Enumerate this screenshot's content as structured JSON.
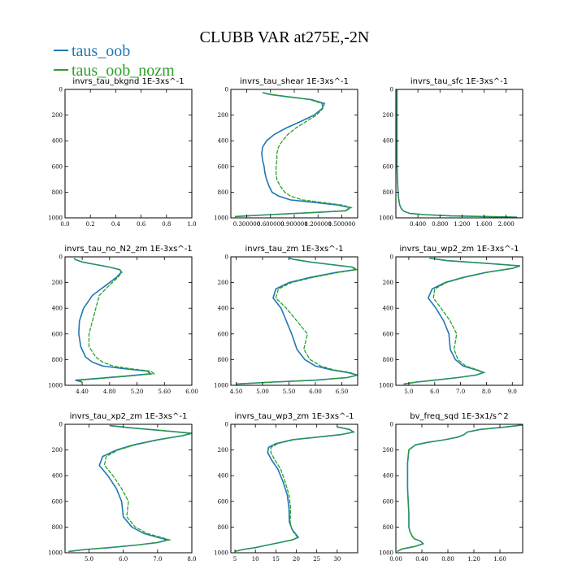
{
  "figure": {
    "title": "CLUBB VAR at275E,-2N"
  },
  "legend": [
    {
      "name": "taus_oob",
      "color": "#1f77b4"
    },
    {
      "name": "taus_oob_nozm",
      "color": "#2ca02c"
    }
  ],
  "chart_data": [
    {
      "type": "line",
      "title": "invrs_tau_bkgnd   1E-3xs^-1",
      "xlim": [
        0,
        1
      ],
      "ylim": [
        1000,
        0
      ],
      "xticks": [
        "0.0",
        "0.2",
        "0.4",
        "0.6",
        "0.8",
        "1.0"
      ],
      "xtick_values": [
        0,
        0.2,
        0.4,
        0.6,
        0.8,
        1.0
      ],
      "yticks": [
        "0",
        "200",
        "400",
        "600",
        "800",
        "1000"
      ],
      "series": []
    },
    {
      "type": "line",
      "title": "invrs_tau_shear   1E-3xs^-1",
      "xlim": [
        0.1,
        1.7
      ],
      "ylim": [
        1000,
        0
      ],
      "xticks": [
        "0.300000",
        "0.600000",
        "0.900000",
        "1.200000",
        "1.500000"
      ],
      "xtick_values": [
        0.3,
        0.6,
        0.9,
        1.2,
        1.5
      ],
      "yticks": [
        "0",
        "200",
        "400",
        "600",
        "800",
        "1000"
      ],
      "series": [
        {
          "name": "taus_oob",
          "color": "#1f77b4",
          "y": [
            990,
            975,
            960,
            945,
            920,
            900,
            880,
            860,
            830,
            800,
            750,
            700,
            650,
            600,
            550,
            500,
            450,
            400,
            350,
            300,
            250,
            200,
            150,
            110,
            80,
            60,
            40,
            25
          ],
          "x": [
            0.15,
            0.6,
            1.1,
            1.55,
            1.6,
            1.45,
            1.15,
            0.85,
            0.7,
            0.62,
            0.58,
            0.55,
            0.53,
            0.52,
            0.5,
            0.49,
            0.5,
            0.55,
            0.65,
            0.8,
            0.98,
            1.15,
            1.25,
            1.28,
            1.12,
            0.85,
            0.6,
            0.5
          ]
        },
        {
          "name": "taus_oob_nozm",
          "color": "#2ca02c",
          "y": [
            990,
            975,
            960,
            945,
            920,
            900,
            880,
            860,
            830,
            800,
            750,
            700,
            650,
            600,
            550,
            500,
            450,
            400,
            350,
            300,
            250,
            200,
            150,
            110,
            80,
            60,
            40,
            25
          ],
          "x": [
            0.15,
            0.6,
            1.1,
            1.55,
            1.62,
            1.5,
            1.25,
            1.0,
            0.85,
            0.78,
            0.72,
            0.68,
            0.67,
            0.67,
            0.68,
            0.68,
            0.7,
            0.75,
            0.82,
            0.92,
            1.05,
            1.18,
            1.26,
            1.25,
            1.1,
            0.88,
            0.62,
            0.5
          ]
        }
      ]
    },
    {
      "type": "line",
      "title": "invrs_tau_sfc   1E-3xs^-1",
      "xlim": [
        0,
        2.3
      ],
      "ylim": [
        1000,
        0
      ],
      "xticks": [
        "0.400",
        "0.800",
        "1.200",
        "1.600",
        "2.000"
      ],
      "xtick_values": [
        0.4,
        0.8,
        1.2,
        1.6,
        2.0
      ],
      "yticks": [
        "0",
        "200",
        "400",
        "600",
        "800",
        "1000"
      ],
      "series": [
        {
          "name": "taus_oob",
          "color": "#1f77b4",
          "y": [
            0,
            200,
            400,
            600,
            700,
            800,
            850,
            900,
            930,
            950,
            965,
            975,
            985,
            995
          ],
          "x": [
            0.02,
            0.02,
            0.02,
            0.02,
            0.03,
            0.04,
            0.05,
            0.07,
            0.1,
            0.15,
            0.25,
            0.5,
            1.0,
            2.2
          ]
        },
        {
          "name": "taus_oob_nozm",
          "color": "#2ca02c",
          "y": [
            0,
            200,
            400,
            600,
            700,
            800,
            850,
            900,
            930,
            950,
            965,
            975,
            985,
            995
          ],
          "x": [
            0.02,
            0.02,
            0.02,
            0.02,
            0.03,
            0.04,
            0.05,
            0.07,
            0.1,
            0.15,
            0.25,
            0.5,
            1.0,
            2.2
          ]
        }
      ]
    },
    {
      "type": "line",
      "title": "invrs_tau_no_N2_zm   1E-3xs^-1",
      "xlim": [
        4.15,
        6.0
      ],
      "ylim": [
        1000,
        0
      ],
      "xticks": [
        "4.40",
        "4.80",
        "5.20",
        "5.60",
        "6.00"
      ],
      "xtick_values": [
        4.4,
        4.8,
        5.2,
        5.6,
        6.0
      ],
      "yticks": [
        "0",
        "200",
        "400",
        "600",
        "800",
        "1000"
      ],
      "series": [
        {
          "name": "taus_oob",
          "color": "#1f77b4",
          "y": [
            975,
            960,
            950,
            930,
            910,
            890,
            870,
            850,
            820,
            780,
            700,
            600,
            500,
            400,
            300,
            220,
            160,
            120,
            100,
            80,
            60,
            40,
            20,
            10
          ],
          "x": [
            4.4,
            4.3,
            4.55,
            5.0,
            5.4,
            5.35,
            5.0,
            4.7,
            4.55,
            4.45,
            4.38,
            4.35,
            4.36,
            4.42,
            4.55,
            4.75,
            4.9,
            4.97,
            4.95,
            4.8,
            4.6,
            4.4,
            4.3,
            4.28
          ]
        },
        {
          "name": "taus_oob_nozm",
          "color": "#2ca02c",
          "y": [
            975,
            960,
            950,
            930,
            910,
            890,
            870,
            850,
            820,
            780,
            700,
            600,
            500,
            400,
            300,
            220,
            160,
            120,
            100,
            80,
            60,
            40,
            20,
            10
          ],
          "x": [
            4.4,
            4.35,
            4.6,
            5.05,
            5.45,
            5.4,
            5.1,
            4.85,
            4.7,
            4.6,
            4.5,
            4.5,
            4.55,
            4.6,
            4.65,
            4.8,
            4.92,
            4.98,
            4.95,
            4.8,
            4.6,
            4.4,
            4.3,
            4.28
          ]
        }
      ]
    },
    {
      "type": "line",
      "title": "invrs_tau_zm   1E-3xs^-1",
      "xlim": [
        4.4,
        6.8
      ],
      "ylim": [
        1000,
        0
      ],
      "xticks": [
        "4.50",
        "5.00",
        "5.50",
        "6.00",
        "6.50"
      ],
      "xtick_values": [
        4.5,
        5.0,
        5.5,
        6.0,
        6.5
      ],
      "yticks": [
        "0",
        "200",
        "400",
        "600",
        "800",
        "1000"
      ],
      "series": [
        {
          "name": "taus_oob",
          "color": "#1f77b4",
          "y": [
            990,
            975,
            960,
            940,
            920,
            900,
            880,
            850,
            800,
            720,
            600,
            500,
            400,
            320,
            250,
            200,
            160,
            120,
            100,
            80,
            60,
            40,
            20,
            10
          ],
          "x": [
            4.5,
            5.2,
            6.0,
            6.6,
            6.8,
            6.6,
            6.3,
            6.0,
            5.8,
            5.65,
            5.55,
            5.45,
            5.35,
            5.2,
            5.25,
            5.5,
            5.9,
            6.4,
            6.75,
            6.7,
            6.3,
            5.9,
            5.6,
            5.5
          ]
        },
        {
          "name": "taus_oob_nozm",
          "color": "#2ca02c",
          "y": [
            990,
            975,
            960,
            940,
            920,
            900,
            880,
            850,
            800,
            720,
            600,
            500,
            400,
            320,
            250,
            200,
            160,
            120,
            100,
            80,
            60,
            40,
            20,
            10
          ],
          "x": [
            4.5,
            5.2,
            6.0,
            6.6,
            6.8,
            6.65,
            6.35,
            6.1,
            5.9,
            5.78,
            5.85,
            5.65,
            5.45,
            5.25,
            5.3,
            5.55,
            5.95,
            6.45,
            6.78,
            6.72,
            6.3,
            5.9,
            5.6,
            5.5
          ]
        }
      ]
    },
    {
      "type": "line",
      "title": "invrs_tau_wp2_zm   1E-3xs^-1",
      "xlim": [
        4.5,
        9.4
      ],
      "ylim": [
        1000,
        0
      ],
      "xticks": [
        "5.0",
        "6.0",
        "7.0",
        "8.0",
        "9.0"
      ],
      "xtick_values": [
        5,
        6,
        7,
        8,
        9
      ],
      "yticks": [
        "0",
        "200",
        "400",
        "600",
        "800",
        "1000"
      ],
      "series": [
        {
          "name": "taus_oob",
          "color": "#1f77b4",
          "y": [
            990,
            975,
            960,
            940,
            920,
            900,
            880,
            850,
            800,
            720,
            600,
            500,
            400,
            320,
            250,
            200,
            160,
            120,
            90,
            70,
            50,
            30,
            10
          ],
          "x": [
            4.8,
            5.3,
            6.0,
            6.9,
            7.6,
            7.9,
            7.6,
            7.1,
            6.8,
            6.6,
            6.55,
            6.35,
            6.05,
            5.75,
            5.9,
            6.4,
            7.1,
            8.0,
            9.0,
            9.3,
            8.0,
            6.5,
            5.8
          ]
        },
        {
          "name": "taus_oob_nozm",
          "color": "#2ca02c",
          "y": [
            990,
            975,
            960,
            940,
            920,
            900,
            880,
            850,
            800,
            720,
            600,
            500,
            400,
            320,
            250,
            200,
            160,
            120,
            90,
            70,
            50,
            30,
            10
          ],
          "x": [
            4.8,
            5.3,
            6.0,
            6.9,
            7.6,
            7.9,
            7.65,
            7.2,
            6.9,
            6.75,
            6.85,
            6.6,
            6.25,
            5.95,
            6.0,
            6.45,
            7.15,
            8.05,
            9.0,
            9.3,
            8.0,
            6.5,
            5.8
          ]
        }
      ]
    },
    {
      "type": "line",
      "title": "invrs_tau_xp2_zm   1E-3xs^-1",
      "xlim": [
        4.3,
        8.0
      ],
      "ylim": [
        1000,
        0
      ],
      "xticks": [
        "5.0",
        "6.0",
        "7.0",
        "8.0"
      ],
      "xtick_values": [
        5,
        6,
        7,
        8
      ],
      "yticks": [
        "0",
        "200",
        "400",
        "600",
        "800",
        "1000"
      ],
      "series": [
        {
          "name": "taus_oob",
          "color": "#1f77b4",
          "y": [
            990,
            975,
            960,
            940,
            920,
            900,
            880,
            850,
            800,
            720,
            600,
            500,
            400,
            320,
            250,
            200,
            160,
            120,
            90,
            70,
            50,
            30,
            10
          ],
          "x": [
            4.4,
            4.9,
            5.6,
            6.4,
            7.0,
            7.3,
            7.0,
            6.6,
            6.25,
            6.0,
            5.95,
            5.8,
            5.55,
            5.3,
            5.4,
            5.8,
            6.3,
            7.0,
            7.7,
            8.0,
            7.2,
            6.3,
            5.6
          ]
        },
        {
          "name": "taus_oob_nozm",
          "color": "#2ca02c",
          "y": [
            990,
            975,
            960,
            940,
            920,
            900,
            880,
            850,
            800,
            720,
            600,
            500,
            400,
            320,
            250,
            200,
            160,
            120,
            90,
            70,
            50,
            30,
            10
          ],
          "x": [
            4.4,
            4.9,
            5.6,
            6.4,
            7.0,
            7.35,
            7.1,
            6.7,
            6.35,
            6.1,
            6.15,
            5.95,
            5.7,
            5.45,
            5.5,
            5.85,
            6.35,
            7.05,
            7.7,
            8.0,
            7.2,
            6.3,
            5.6
          ]
        }
      ]
    },
    {
      "type": "line",
      "title": "invrs_tau_wp3_zm   1E-3xs^-1",
      "xlim": [
        4,
        35
      ],
      "ylim": [
        1000,
        0
      ],
      "xticks": [
        "5",
        "10",
        "15",
        "20",
        "25",
        "30"
      ],
      "xtick_values": [
        5,
        10,
        15,
        20,
        25,
        30
      ],
      "yticks": [
        "0",
        "200",
        "400",
        "600",
        "800",
        "1000"
      ],
      "series": [
        {
          "name": "taus_oob",
          "color": "#1f77b4",
          "y": [
            990,
            975,
            960,
            940,
            920,
            900,
            880,
            860,
            820,
            760,
            650,
            550,
            450,
            350,
            280,
            220,
            180,
            150,
            120,
            100,
            80,
            60,
            40,
            20
          ],
          "x": [
            5,
            7,
            10,
            13,
            16,
            19,
            20.5,
            20,
            19,
            18.3,
            18.2,
            17.8,
            16.8,
            15.5,
            14,
            13,
            13.2,
            15,
            19,
            25,
            31,
            34,
            33,
            30
          ]
        },
        {
          "name": "taus_oob_nozm",
          "color": "#2ca02c",
          "y": [
            990,
            975,
            960,
            940,
            920,
            900,
            880,
            860,
            820,
            760,
            650,
            550,
            450,
            350,
            280,
            220,
            180,
            150,
            120,
            100,
            80,
            60,
            40,
            20
          ],
          "x": [
            5,
            7,
            10,
            13,
            16,
            19,
            20.3,
            19.8,
            18.9,
            18.5,
            18.6,
            18.2,
            17.3,
            16.2,
            14.8,
            13.8,
            13.8,
            15.5,
            19.4,
            25.3,
            31,
            34,
            33,
            30
          ]
        }
      ]
    },
    {
      "type": "line",
      "title": "bv_freq_sqd   1E-3x1/s^2",
      "xlim": [
        0,
        1.95
      ],
      "ylim": [
        1000,
        0
      ],
      "xticks": [
        "0.00",
        "0.40",
        "0.80",
        "1.20",
        "1.60"
      ],
      "xtick_values": [
        0,
        0.4,
        0.8,
        1.2,
        1.6
      ],
      "yticks": [
        "0",
        "200",
        "400",
        "600",
        "800",
        "1000"
      ],
      "series": [
        {
          "name": "taus_oob",
          "color": "#1f77b4",
          "y": [
            990,
            970,
            950,
            930,
            910,
            890,
            870,
            840,
            800,
            700,
            600,
            500,
            400,
            300,
            200,
            160,
            140,
            120,
            100,
            80,
            60,
            40,
            20,
            5
          ],
          "x": [
            0.02,
            0.1,
            0.3,
            0.42,
            0.38,
            0.28,
            0.25,
            0.22,
            0.2,
            0.2,
            0.19,
            0.18,
            0.18,
            0.18,
            0.2,
            0.3,
            0.5,
            0.75,
            0.95,
            1.05,
            1.1,
            1.3,
            1.7,
            1.95
          ]
        },
        {
          "name": "taus_oob_nozm",
          "color": "#2ca02c",
          "y": [
            990,
            970,
            950,
            930,
            910,
            890,
            870,
            840,
            800,
            700,
            600,
            500,
            400,
            300,
            200,
            160,
            140,
            120,
            100,
            80,
            60,
            40,
            20,
            5
          ],
          "x": [
            0.02,
            0.1,
            0.3,
            0.42,
            0.38,
            0.28,
            0.25,
            0.22,
            0.2,
            0.2,
            0.19,
            0.18,
            0.18,
            0.18,
            0.2,
            0.3,
            0.5,
            0.75,
            0.95,
            1.05,
            1.1,
            1.3,
            1.7,
            1.95
          ]
        }
      ]
    }
  ]
}
